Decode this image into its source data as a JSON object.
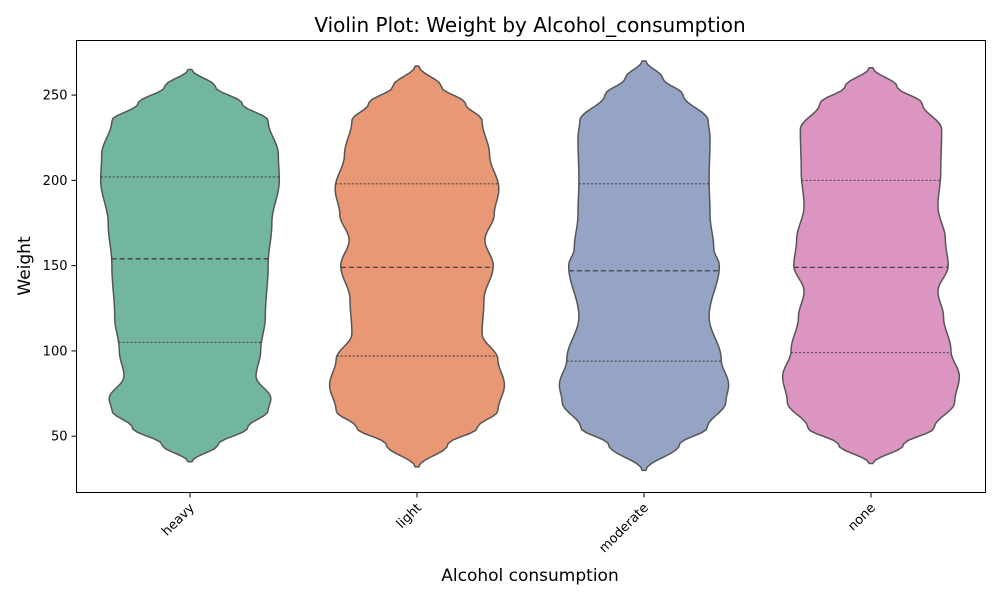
{
  "chart_data": {
    "type": "violin",
    "title": "Violin Plot: Weight by Alcohol_consumption",
    "xlabel": "Alcohol consumption",
    "ylabel": "Weight",
    "ylim": [
      17,
      282
    ],
    "yticks": [
      50,
      100,
      150,
      200,
      250
    ],
    "categories": [
      "heavy",
      "light",
      "moderate",
      "none"
    ],
    "colors": [
      "#73b69f",
      "#e99875",
      "#95a4c5",
      "#dc95c1"
    ],
    "series": [
      {
        "category": "heavy",
        "min": 35,
        "max": 265,
        "q1": 105,
        "median": 154,
        "q3": 202,
        "density_profile": [
          [
            35,
            0.02
          ],
          [
            45,
            0.3
          ],
          [
            55,
            0.62
          ],
          [
            65,
            0.84
          ],
          [
            72,
            0.87
          ],
          [
            85,
            0.71
          ],
          [
            100,
            0.76
          ],
          [
            120,
            0.81
          ],
          [
            150,
            0.84
          ],
          [
            175,
            0.88
          ],
          [
            200,
            0.96
          ],
          [
            215,
            0.95
          ],
          [
            235,
            0.84
          ],
          [
            245,
            0.56
          ],
          [
            255,
            0.27
          ],
          [
            265,
            0.02
          ]
        ]
      },
      {
        "category": "light",
        "min": 32,
        "max": 267,
        "q1": 97,
        "median": 149,
        "q3": 198,
        "density_profile": [
          [
            32,
            0.02
          ],
          [
            45,
            0.33
          ],
          [
            55,
            0.65
          ],
          [
            65,
            0.87
          ],
          [
            80,
            0.94
          ],
          [
            95,
            0.87
          ],
          [
            110,
            0.7
          ],
          [
            130,
            0.72
          ],
          [
            150,
            0.82
          ],
          [
            165,
            0.73
          ],
          [
            180,
            0.83
          ],
          [
            195,
            0.88
          ],
          [
            215,
            0.78
          ],
          [
            235,
            0.7
          ],
          [
            245,
            0.52
          ],
          [
            255,
            0.26
          ],
          [
            267,
            0.02
          ]
        ]
      },
      {
        "category": "moderate",
        "min": 30,
        "max": 270,
        "q1": 94,
        "median": 147,
        "q3": 198,
        "density_profile": [
          [
            30,
            0.02
          ],
          [
            45,
            0.38
          ],
          [
            55,
            0.68
          ],
          [
            70,
            0.88
          ],
          [
            80,
            0.91
          ],
          [
            95,
            0.83
          ],
          [
            120,
            0.7
          ],
          [
            150,
            0.81
          ],
          [
            160,
            0.75
          ],
          [
            180,
            0.71
          ],
          [
            200,
            0.7
          ],
          [
            225,
            0.71
          ],
          [
            235,
            0.69
          ],
          [
            250,
            0.42
          ],
          [
            260,
            0.2
          ],
          [
            270,
            0.02
          ]
        ]
      },
      {
        "category": "none",
        "min": 34,
        "max": 266,
        "q1": 99,
        "median": 149,
        "q3": 200,
        "density_profile": [
          [
            34,
            0.02
          ],
          [
            45,
            0.35
          ],
          [
            55,
            0.68
          ],
          [
            70,
            0.9
          ],
          [
            85,
            0.95
          ],
          [
            100,
            0.86
          ],
          [
            120,
            0.78
          ],
          [
            135,
            0.72
          ],
          [
            150,
            0.83
          ],
          [
            165,
            0.8
          ],
          [
            185,
            0.72
          ],
          [
            205,
            0.75
          ],
          [
            230,
            0.76
          ],
          [
            245,
            0.55
          ],
          [
            255,
            0.28
          ],
          [
            266,
            0.02
          ]
        ]
      }
    ]
  }
}
